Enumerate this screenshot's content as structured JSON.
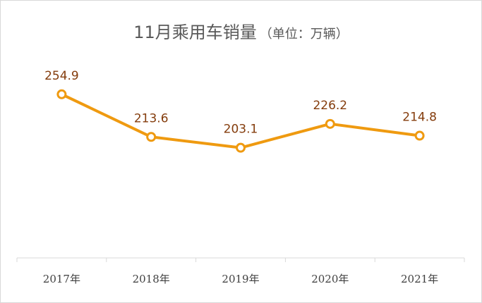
{
  "chart_data": {
    "type": "line",
    "title": "11月乘用车销量",
    "subtitle": "（单位：万辆）",
    "categories": [
      "2017年",
      "2018年",
      "2019年",
      "2020年",
      "2021年"
    ],
    "series": [
      {
        "values": [
          254.9,
          213.6,
          203.1,
          226.2,
          214.8
        ]
      }
    ],
    "data_labels": [
      "254.9",
      "213.6",
      "203.1",
      "226.2",
      "214.8"
    ],
    "xlabel": "",
    "ylabel": "",
    "ylim": [
      0,
      300
    ],
    "grid": false,
    "legend": "none",
    "colors": {
      "line": "#ef9a10",
      "marker_fill": "#ffffff",
      "label": "#843c0c",
      "axis": "#d9d9d9"
    }
  }
}
